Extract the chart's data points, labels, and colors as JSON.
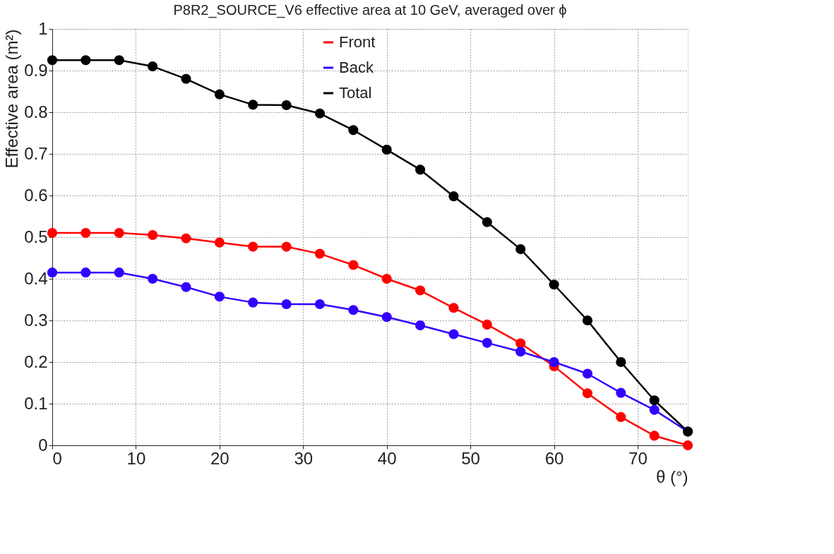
{
  "chart_data": {
    "type": "line",
    "title": "P8R2_SOURCE_V6 effective area at 10 GeV, averaged over ϕ",
    "xlabel": "θ (°)",
    "ylabel": "Effective area (m²)",
    "x": [
      0,
      4,
      8,
      12,
      16,
      20,
      24,
      28,
      32,
      36,
      40,
      44,
      48,
      52,
      56,
      60,
      64,
      68,
      72,
      76
    ],
    "series": [
      {
        "name": "Front",
        "color": "#ff0000",
        "values": [
          0.51,
          0.51,
          0.51,
          0.505,
          0.497,
          0.487,
          0.477,
          0.477,
          0.46,
          0.433,
          0.4,
          0.372,
          0.33,
          0.29,
          0.245,
          0.19,
          0.125,
          0.068,
          0.023,
          0.0
        ]
      },
      {
        "name": "Back",
        "color": "#3300ff",
        "values": [
          0.415,
          0.415,
          0.415,
          0.4,
          0.38,
          0.357,
          0.343,
          0.339,
          0.339,
          0.325,
          0.308,
          0.288,
          0.267,
          0.246,
          0.225,
          0.2,
          0.172,
          0.126,
          0.085,
          0.033
        ]
      },
      {
        "name": "Total",
        "color": "#000000",
        "values": [
          0.925,
          0.925,
          0.925,
          0.91,
          0.88,
          0.843,
          0.818,
          0.817,
          0.797,
          0.757,
          0.71,
          0.662,
          0.598,
          0.536,
          0.471,
          0.386,
          0.3,
          0.2,
          0.108,
          0.033
        ]
      }
    ],
    "xlim": [
      0,
      76
    ],
    "xticks": [
      0,
      10,
      20,
      30,
      40,
      50,
      60,
      70
    ],
    "ylim": [
      0,
      1
    ],
    "yticks": [
      0,
      0.1,
      0.2,
      0.3,
      0.4,
      0.5,
      0.6,
      0.7,
      0.8,
      0.9,
      1
    ],
    "grid": true,
    "legend": "top",
    "marker": "circle",
    "line_style": "solid"
  }
}
